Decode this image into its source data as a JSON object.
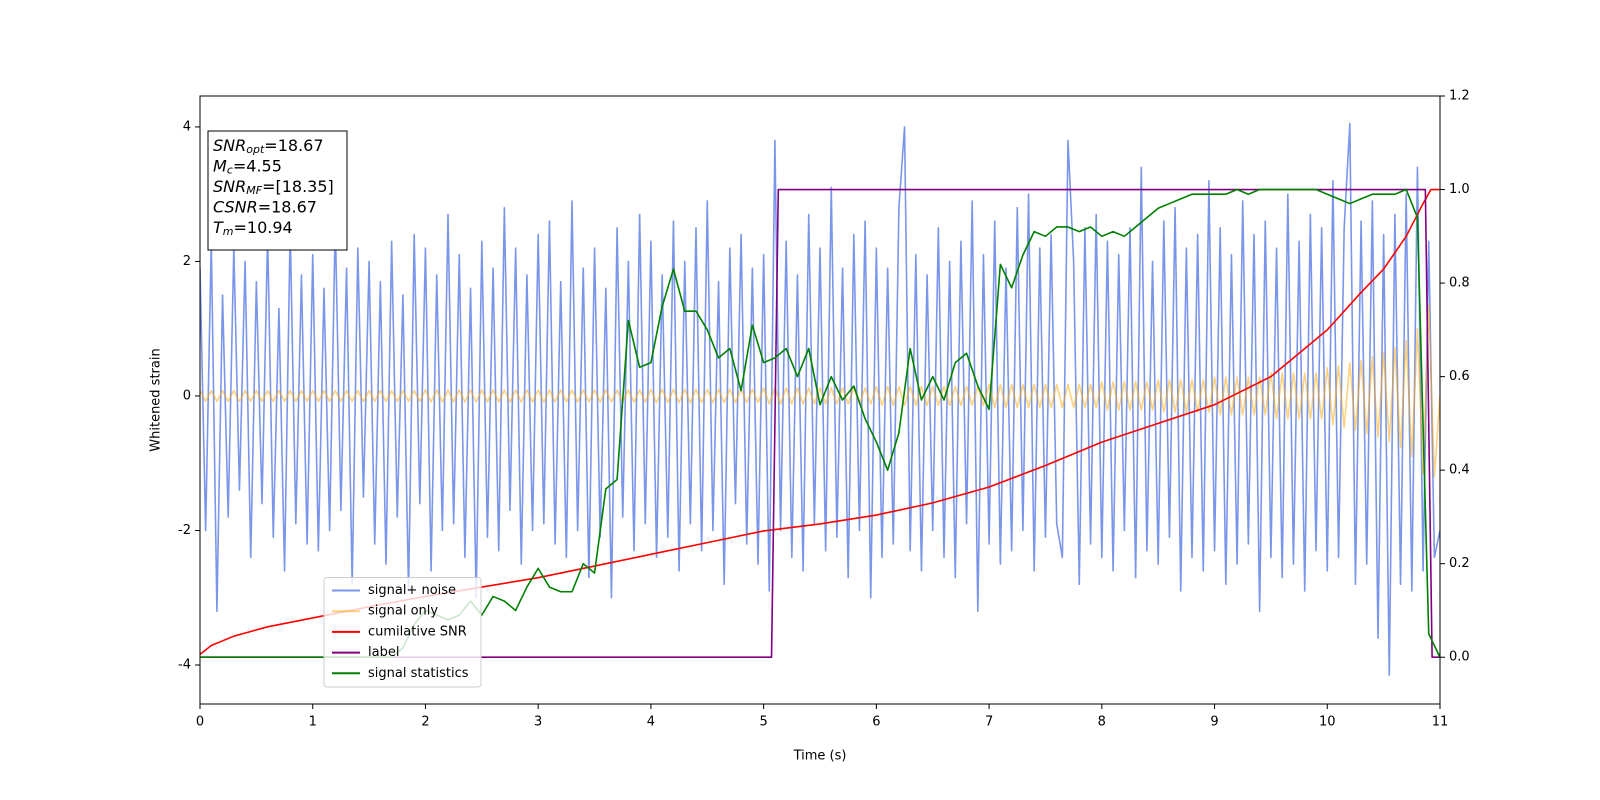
{
  "chart_data": {
    "type": "line",
    "xlabel": "Time (s)",
    "ylabel": "Whitened strain",
    "xlim": [
      0,
      11
    ],
    "xticks": [
      0,
      1,
      2,
      3,
      4,
      5,
      6,
      7,
      8,
      9,
      10,
      11
    ],
    "ylim": [
      -4.58,
      4.46
    ],
    "yticks": [
      -4,
      -2,
      0,
      2,
      4
    ],
    "y2lim": [
      -0.1,
      1.2
    ],
    "y2ticks": [
      {
        "value": 0,
        "label": "0.0"
      },
      0.2,
      0.4,
      0.6,
      0.8,
      {
        "value": 1,
        "label": "1.0"
      },
      1.2
    ],
    "legend": "lower left",
    "annotation": [
      {
        "italic": "SNR",
        "sub": "opt",
        "rest": "=18.67"
      },
      {
        "italic": "M",
        "sub": "c",
        "rest": "=4.55"
      },
      {
        "italic": "SNR",
        "sub": "MF",
        "rest": "=[18.35]"
      },
      {
        "italic": "CSNR",
        "rest": "=18.67"
      },
      {
        "italic": "T",
        "sub": "m",
        "rest": "=10.94"
      }
    ],
    "x": [
      0,
      0.05,
      0.1,
      0.15,
      0.2,
      0.25,
      0.3,
      0.35,
      0.4,
      0.45,
      0.5,
      0.55,
      0.6,
      0.65,
      0.7,
      0.75,
      0.8,
      0.85,
      0.9,
      0.95,
      1,
      1.05,
      1.1,
      1.15,
      1.2,
      1.25,
      1.3,
      1.35,
      1.4,
      1.45,
      1.5,
      1.55,
      1.6,
      1.65,
      1.7,
      1.75,
      1.8,
      1.85,
      1.9,
      1.95,
      2,
      2.05,
      2.1,
      2.15,
      2.2,
      2.25,
      2.3,
      2.35,
      2.4,
      2.45,
      2.5,
      2.55,
      2.6,
      2.65,
      2.7,
      2.75,
      2.8,
      2.85,
      2.9,
      2.95,
      3,
      3.05,
      3.1,
      3.15,
      3.2,
      3.25,
      3.3,
      3.35,
      3.4,
      3.45,
      3.5,
      3.55,
      3.6,
      3.65,
      3.7,
      3.75,
      3.8,
      3.85,
      3.9,
      3.95,
      4,
      4.05,
      4.1,
      4.15,
      4.2,
      4.25,
      4.3,
      4.35,
      4.4,
      4.45,
      4.5,
      4.55,
      4.6,
      4.65,
      4.7,
      4.75,
      4.8,
      4.85,
      4.9,
      4.95,
      5,
      5.05,
      5.1,
      5.15,
      5.2,
      5.25,
      5.3,
      5.35,
      5.4,
      5.45,
      5.5,
      5.55,
      5.6,
      5.65,
      5.7,
      5.75,
      5.8,
      5.85,
      5.9,
      5.95,
      6,
      6.05,
      6.1,
      6.15,
      6.2,
      6.25,
      6.3,
      6.35,
      6.4,
      6.45,
      6.5,
      6.55,
      6.6,
      6.65,
      6.7,
      6.75,
      6.8,
      6.85,
      6.9,
      6.95,
      7,
      7.05,
      7.1,
      7.15,
      7.2,
      7.25,
      7.3,
      7.35,
      7.4,
      7.45,
      7.5,
      7.55,
      7.6,
      7.65,
      7.7,
      7.75,
      7.8,
      7.85,
      7.9,
      7.95,
      8,
      8.05,
      8.1,
      8.15,
      8.2,
      8.25,
      8.3,
      8.35,
      8.4,
      8.45,
      8.5,
      8.55,
      8.6,
      8.65,
      8.7,
      8.75,
      8.8,
      8.85,
      8.9,
      8.95,
      9,
      9.05,
      9.1,
      9.15,
      9.2,
      9.25,
      9.3,
      9.35,
      9.4,
      9.45,
      9.5,
      9.55,
      9.6,
      9.65,
      9.7,
      9.75,
      9.8,
      9.85,
      9.9,
      9.95,
      10,
      10.05,
      10.1,
      10.15,
      10.2,
      10.25,
      10.3,
      10.35,
      10.4,
      10.45,
      10.5,
      10.55,
      10.6,
      10.65,
      10.7,
      10.75,
      10.8,
      10.85,
      10.9,
      10.95,
      11
    ],
    "series": [
      {
        "name": "signal+ noise",
        "color": "#4169e1",
        "alpha": 0.7,
        "values": [
          1.9,
          -2.0,
          2.3,
          -3.2,
          1.5,
          -1.8,
          2.2,
          -1.4,
          2.0,
          -2.4,
          1.7,
          -1.6,
          2.4,
          -2.1,
          1.3,
          -2.6,
          2.5,
          -1.9,
          1.8,
          -2.2,
          2.1,
          -2.3,
          1.6,
          -2.0,
          2.6,
          -1.7,
          1.9,
          -2.8,
          2.2,
          -1.5,
          2.0,
          -2.2,
          1.7,
          -2.5,
          2.3,
          -1.8,
          1.5,
          -2.9,
          2.4,
          -1.6,
          2.2,
          -2.6,
          1.8,
          -2.0,
          2.7,
          -1.9,
          2.1,
          -2.4,
          1.6,
          -3.0,
          2.3,
          -2.1,
          1.9,
          -2.3,
          2.8,
          -1.7,
          2.2,
          -2.5,
          1.8,
          -2.0,
          2.4,
          -1.9,
          2.6,
          -2.2,
          1.7,
          -2.4,
          2.9,
          -2.0,
          1.9,
          -2.7,
          2.2,
          -2.1,
          1.6,
          -3.0,
          2.5,
          -1.8,
          2.0,
          -2.3,
          2.7,
          -1.9,
          2.3,
          -2.4,
          1.8,
          -2.1,
          2.6,
          -2.6,
          2.0,
          -1.9,
          2.5,
          -2.3,
          2.9,
          -2.0,
          1.7,
          -2.8,
          2.2,
          -1.6,
          2.4,
          -2.2,
          1.9,
          -2.5,
          2.1,
          -2.9,
          3.8,
          -2.0,
          2.3,
          -2.4,
          1.8,
          -2.6,
          2.7,
          -1.9,
          2.2,
          -2.3,
          3.1,
          -2.1,
          1.9,
          -2.7,
          2.4,
          -2.0,
          2.6,
          -3.0,
          2.2,
          -2.4,
          1.9,
          -2.2,
          2.8,
          4.0,
          -2.3,
          2.1,
          -2.6,
          1.8,
          -2.0,
          2.5,
          -2.4,
          2.0,
          -2.7,
          2.3,
          -1.9,
          2.9,
          -3.2,
          2.1,
          -2.2,
          2.6,
          -2.5,
          1.9,
          -2.3,
          2.8,
          -2.0,
          3.0,
          -2.6,
          2.2,
          -2.1,
          2.4,
          -1.9,
          -2.4,
          3.8,
          2.0,
          -2.8,
          2.5,
          -2.2,
          2.7,
          -2.4,
          2.3,
          -2.6,
          2.1,
          -2.0,
          2.5,
          -2.7,
          3.4,
          -2.3,
          2.0,
          -2.5,
          2.6,
          -2.1,
          2.8,
          -2.9,
          2.2,
          -2.4,
          2.4,
          -2.6,
          3.2,
          -2.3,
          2.5,
          -2.8,
          2.1,
          -2.5,
          2.9,
          -2.2,
          2.4,
          -3.2,
          2.6,
          -2.4,
          2.2,
          -2.7,
          3.0,
          -2.5,
          2.3,
          -2.9,
          2.7,
          -2.3,
          2.5,
          -2.6,
          3.2,
          -2.4,
          2.5,
          4.05,
          -2.8,
          2.6,
          -2.5,
          2.9,
          -3.6,
          2.4,
          -4.15,
          2.7,
          -2.8,
          3.0,
          -2.9,
          3.4,
          -2.6,
          2.3,
          -2.4,
          -2.0
        ]
      },
      {
        "name": "signal only",
        "color": "#ffa500",
        "alpha": 0.5,
        "values": [
          0.08,
          -0.08,
          0.08,
          -0.08,
          0.08,
          -0.08,
          0.08,
          -0.08,
          0.08,
          -0.08,
          0.08,
          -0.08,
          0.08,
          -0.08,
          0.08,
          -0.08,
          0.08,
          -0.08,
          0.08,
          -0.08,
          0.08,
          -0.08,
          0.08,
          -0.08,
          0.08,
          -0.08,
          0.08,
          -0.08,
          0.08,
          -0.08,
          0.08,
          -0.08,
          0.08,
          -0.08,
          0.08,
          -0.08,
          0.08,
          -0.08,
          0.08,
          -0.08,
          0.09,
          -0.09,
          0.09,
          -0.09,
          0.09,
          -0.09,
          0.09,
          -0.09,
          0.09,
          -0.09,
          0.09,
          -0.09,
          0.09,
          -0.09,
          0.09,
          -0.09,
          0.09,
          -0.09,
          0.09,
          -0.09,
          0.09,
          -0.09,
          0.09,
          -0.09,
          0.09,
          -0.09,
          0.09,
          -0.09,
          0.09,
          -0.09,
          0.09,
          -0.09,
          0.09,
          -0.09,
          0.09,
          -0.09,
          0.09,
          -0.09,
          0.09,
          -0.09,
          0.1,
          -0.1,
          0.1,
          -0.1,
          0.1,
          -0.1,
          0.1,
          -0.1,
          0.1,
          -0.1,
          0.1,
          -0.1,
          0.1,
          -0.1,
          0.1,
          -0.1,
          0.1,
          -0.1,
          0.1,
          -0.1,
          0.12,
          -0.12,
          0.12,
          -0.12,
          0.12,
          -0.12,
          0.12,
          -0.12,
          0.12,
          -0.12,
          0.12,
          -0.12,
          0.12,
          -0.12,
          0.12,
          -0.12,
          0.12,
          -0.12,
          0.12,
          -0.12,
          0.14,
          -0.14,
          0.14,
          -0.14,
          0.14,
          -0.14,
          0.14,
          -0.14,
          0.14,
          -0.14,
          0.14,
          -0.14,
          0.14,
          -0.14,
          0.14,
          -0.14,
          0.14,
          -0.14,
          0.14,
          -0.14,
          0.17,
          -0.17,
          0.17,
          -0.17,
          0.17,
          -0.17,
          0.17,
          -0.17,
          0.17,
          -0.17,
          0.17,
          -0.17,
          0.17,
          -0.17,
          0.17,
          -0.17,
          0.17,
          -0.17,
          0.17,
          -0.17,
          0.21,
          -0.21,
          0.21,
          -0.21,
          0.21,
          -0.21,
          0.21,
          -0.21,
          0.21,
          -0.21,
          0.24,
          -0.24,
          0.24,
          -0.24,
          0.24,
          -0.24,
          0.24,
          -0.24,
          0.24,
          -0.24,
          0.28,
          -0.28,
          0.28,
          -0.28,
          0.28,
          -0.28,
          0.28,
          -0.28,
          0.28,
          -0.28,
          0.34,
          -0.34,
          0.34,
          -0.34,
          0.34,
          -0.34,
          0.34,
          -0.34,
          0.34,
          -0.34,
          0.42,
          -0.43,
          0.45,
          -0.47,
          0.49,
          -0.51,
          0.53,
          -0.56,
          0.58,
          -0.61,
          0.64,
          -0.68,
          0.72,
          -0.77,
          0.83,
          -0.9,
          1.0,
          -1.15,
          1.35,
          -1.2,
          0
        ]
      },
      {
        "name": "cumilative SNR",
        "color": "#ff0000",
        "axis": "y2",
        "x": [
          0,
          0.1,
          0.3,
          0.6,
          1,
          1.5,
          2,
          2.5,
          3,
          3.5,
          4,
          4.5,
          5,
          5.5,
          6,
          6.5,
          7,
          7.5,
          8,
          8.5,
          9,
          9.5,
          10,
          10.3,
          10.5,
          10.7,
          10.85,
          10.92,
          11
        ],
        "values": [
          0.006,
          0.025,
          0.045,
          0.065,
          0.084,
          0.108,
          0.13,
          0.15,
          0.17,
          0.195,
          0.22,
          0.245,
          0.27,
          0.285,
          0.304,
          0.33,
          0.364,
          0.41,
          0.46,
          0.5,
          0.54,
          0.6,
          0.7,
          0.78,
          0.83,
          0.9,
          0.97,
          1.0,
          1.0
        ]
      },
      {
        "name": "label",
        "color": "#800080",
        "axis": "y2",
        "x": [
          0,
          5.07,
          5.13,
          10.87,
          10.93,
          11
        ],
        "values": [
          0,
          0,
          1,
          1,
          0,
          0
        ]
      },
      {
        "name": "signal statistics",
        "color": "#008000",
        "axis": "y2",
        "x": [
          0,
          0.1,
          0.2,
          0.3,
          0.4,
          0.5,
          0.6,
          0.7,
          0.8,
          0.9,
          1,
          1.1,
          1.2,
          1.3,
          1.4,
          1.5,
          1.6,
          1.7,
          1.8,
          1.9,
          2,
          2.1,
          2.2,
          2.3,
          2.4,
          2.5,
          2.6,
          2.7,
          2.8,
          2.9,
          3,
          3.1,
          3.2,
          3.3,
          3.4,
          3.5,
          3.6,
          3.7,
          3.8,
          3.9,
          4,
          4.1,
          4.2,
          4.3,
          4.4,
          4.5,
          4.6,
          4.7,
          4.8,
          4.9,
          5,
          5.1,
          5.2,
          5.3,
          5.4,
          5.5,
          5.6,
          5.7,
          5.8,
          5.9,
          6,
          6.1,
          6.2,
          6.3,
          6.4,
          6.5,
          6.6,
          6.7,
          6.8,
          6.9,
          7,
          7.1,
          7.2,
          7.3,
          7.4,
          7.5,
          7.6,
          7.7,
          7.8,
          7.9,
          8,
          8.1,
          8.2,
          8.3,
          8.4,
          8.5,
          8.6,
          8.7,
          8.8,
          8.9,
          9,
          9.1,
          9.2,
          9.3,
          9.4,
          9.5,
          9.6,
          9.7,
          9.8,
          9.9,
          10,
          10.1,
          10.2,
          10.3,
          10.4,
          10.5,
          10.6,
          10.7,
          10.8,
          10.9,
          11
        ],
        "values": [
          0,
          0,
          0,
          0,
          0,
          0,
          0,
          0,
          0,
          0,
          0,
          0,
          0,
          0,
          0,
          0,
          0,
          0,
          0.02,
          0.07,
          0.1,
          0.09,
          0.08,
          0.09,
          0.12,
          0.09,
          0.13,
          0.12,
          0.1,
          0.15,
          0.19,
          0.15,
          0.14,
          0.14,
          0.2,
          0.18,
          0.36,
          0.38,
          0.72,
          0.62,
          0.63,
          0.75,
          0.83,
          0.74,
          0.74,
          0.7,
          0.64,
          0.66,
          0.57,
          0.71,
          0.63,
          0.64,
          0.66,
          0.6,
          0.66,
          0.54,
          0.6,
          0.55,
          0.58,
          0.51,
          0.46,
          0.4,
          0.48,
          0.66,
          0.55,
          0.6,
          0.55,
          0.63,
          0.65,
          0.58,
          0.53,
          0.84,
          0.79,
          0.86,
          0.91,
          0.9,
          0.92,
          0.92,
          0.91,
          0.92,
          0.9,
          0.91,
          0.9,
          0.92,
          0.94,
          0.96,
          0.97,
          0.98,
          0.99,
          0.99,
          0.99,
          0.99,
          1.0,
          0.99,
          1.0,
          1.0,
          1.0,
          1.0,
          1.0,
          1.0,
          0.99,
          0.98,
          0.97,
          0.98,
          0.99,
          0.99,
          0.99,
          1.0,
          0.94,
          0.05,
          0
        ]
      }
    ]
  }
}
